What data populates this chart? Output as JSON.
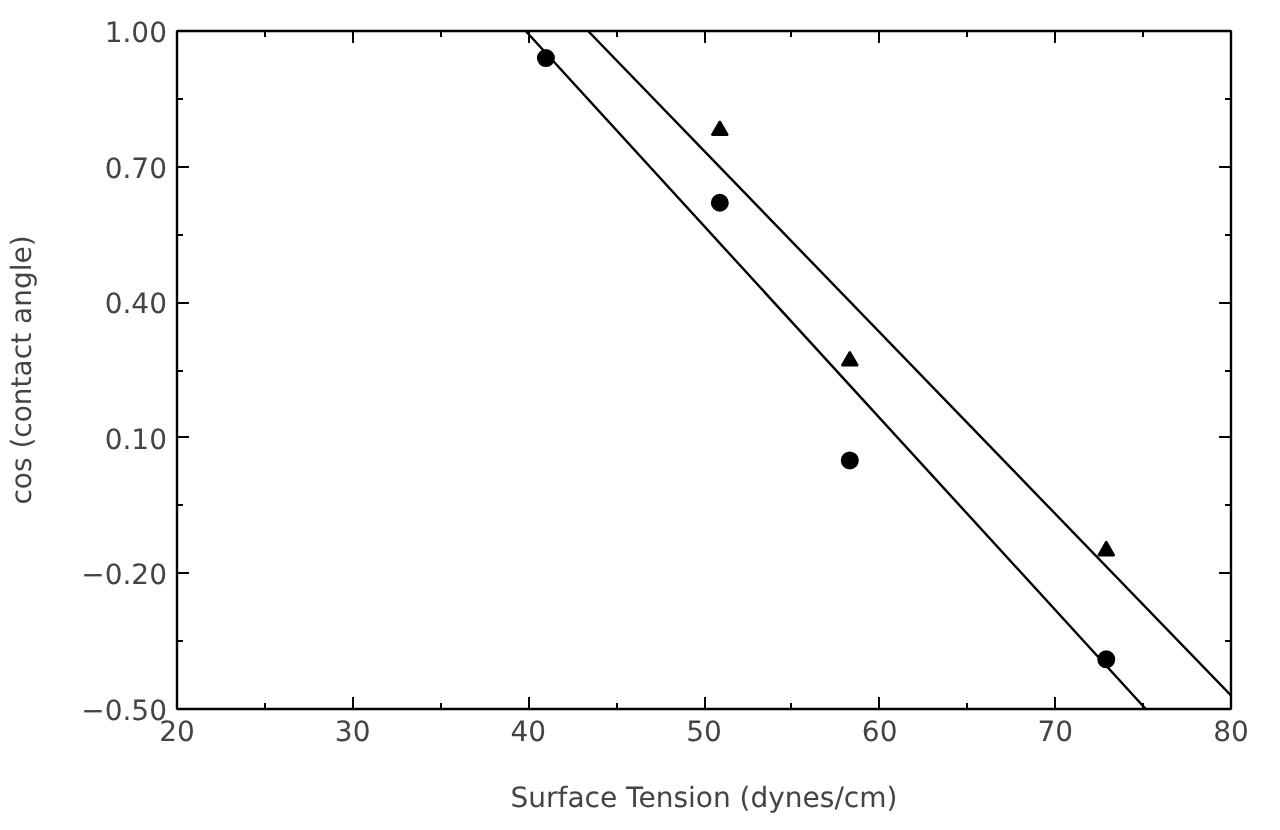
{
  "chart_data": {
    "type": "scatter",
    "xlabel": "Surface Tension (dynes/cm)",
    "ylabel": "cos (contact angle)",
    "xlim": [
      20,
      80
    ],
    "ylim": [
      -0.5,
      1.0
    ],
    "xticks": [
      20,
      30,
      40,
      50,
      60,
      70,
      80
    ],
    "yticks": [
      {
        "value": -0.5,
        "label": "−0.50"
      },
      {
        "value": -0.2,
        "label": "−0.20"
      },
      {
        "value": 0.1,
        "label": "0.10"
      },
      {
        "value": 0.4,
        "label": "0.40"
      },
      {
        "value": 0.7,
        "label": "0.70"
      },
      {
        "value": 1.0,
        "label": "1.00"
      }
    ],
    "grid": false,
    "series": [
      {
        "marker": "circle",
        "color": "#000000",
        "x": [
          41.0,
          50.9,
          58.3,
          72.9
        ],
        "values": [
          0.94,
          0.62,
          0.05,
          -0.39
        ]
      },
      {
        "marker": "triangle",
        "color": "#000000",
        "x": [
          50.9,
          58.3,
          72.9
        ],
        "values": [
          0.78,
          0.27,
          -0.15
        ]
      },
      {
        "type": "line",
        "color": "#000000",
        "x": [
          39.85,
          75.15
        ],
        "values": [
          1.0,
          -0.5
        ]
      },
      {
        "type": "line",
        "color": "#000000",
        "x": [
          43.4,
          80.0
        ],
        "values": [
          1.0,
          -0.47
        ]
      }
    ]
  }
}
